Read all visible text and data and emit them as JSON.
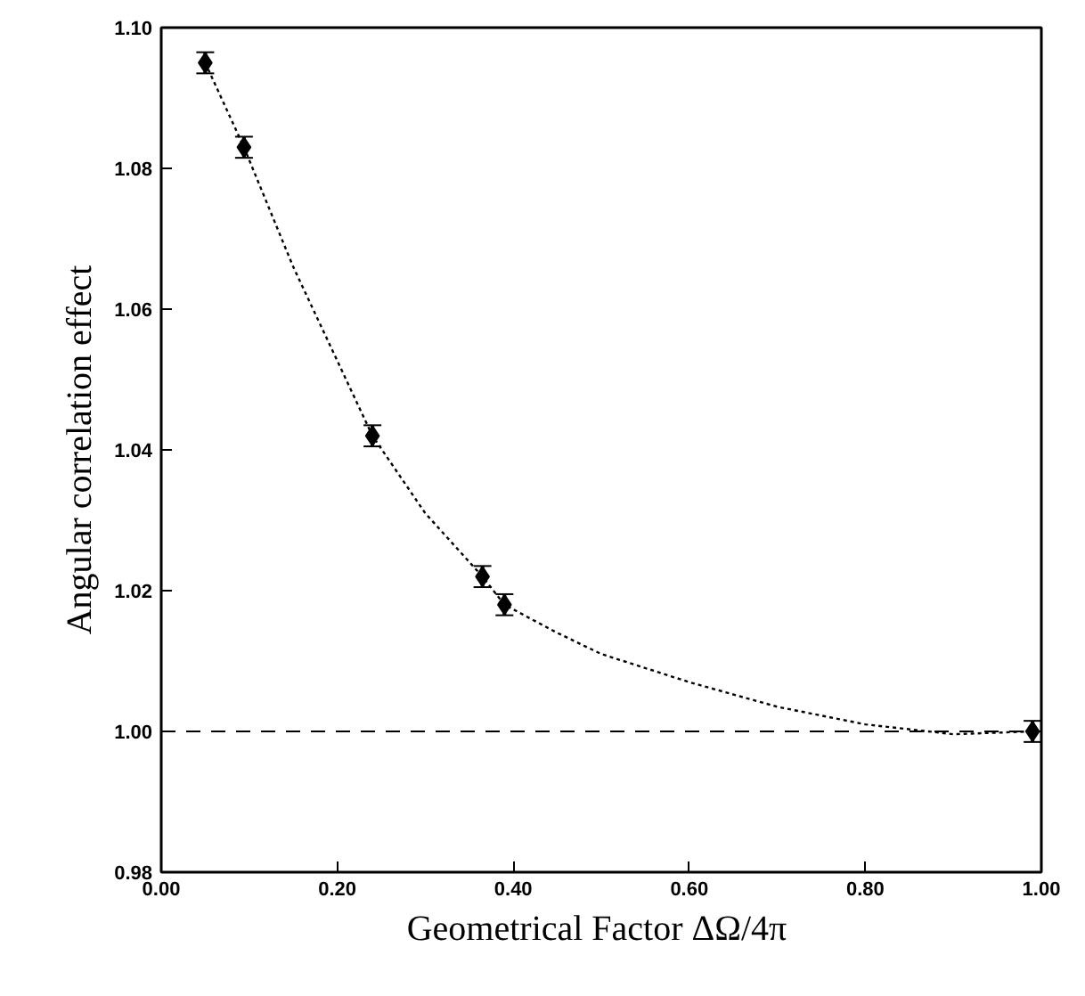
{
  "chart_data": {
    "type": "scatter",
    "xlabel": "Geometrical Factor  ΔΩ/4π",
    "ylabel": "Angular correlation effect",
    "xlim": [
      0,
      1.0
    ],
    "ylim": [
      0.98,
      1.1
    ],
    "xticks": [
      {
        "value": 0,
        "label": "0.00"
      },
      {
        "value": 0.2,
        "label": "0.20"
      },
      {
        "value": 0.4,
        "label": "0.40"
      },
      {
        "value": 0.6,
        "label": "0.60"
      },
      {
        "value": 0.8,
        "label": "0.80"
      },
      {
        "value": 1.0,
        "label": "1.00"
      }
    ],
    "yticks": [
      {
        "value": 0.98,
        "label": "0.98"
      },
      {
        "value": 1.0,
        "label": "1.00"
      },
      {
        "value": 1.02,
        "label": "1.02"
      },
      {
        "value": 1.04,
        "label": "1.04"
      },
      {
        "value": 1.06,
        "label": "1.06"
      },
      {
        "value": 1.08,
        "label": "1.08"
      },
      {
        "value": 1.1,
        "label": "1.10"
      }
    ],
    "grid": false,
    "series": [
      {
        "marker": "diamond",
        "color": "#000000",
        "x": [
          0.05,
          0.094,
          0.24,
          0.365,
          0.39,
          0.99
        ],
        "values": [
          1.095,
          1.083,
          1.042,
          1.022,
          1.018,
          1.0
        ],
        "errors": [
          0.0015,
          0.0015,
          0.0015,
          0.0015,
          0.0015,
          0.0015
        ]
      },
      {
        "type": "line",
        "line_style": "dotted",
        "color": "#000000",
        "x": [
          0.05,
          0.094,
          0.15,
          0.24,
          0.3,
          0.365,
          0.39,
          0.45,
          0.5,
          0.6,
          0.7,
          0.8,
          0.9,
          0.99
        ],
        "values": [
          1.095,
          1.083,
          1.066,
          1.042,
          1.031,
          1.022,
          1.018,
          1.014,
          1.011,
          1.007,
          1.0035,
          1.001,
          0.9996,
          1.0
        ]
      }
    ],
    "ref_lines": [
      {
        "axis": "y",
        "value": 1.0,
        "line_style": "dashed",
        "color": "#000000"
      }
    ]
  }
}
